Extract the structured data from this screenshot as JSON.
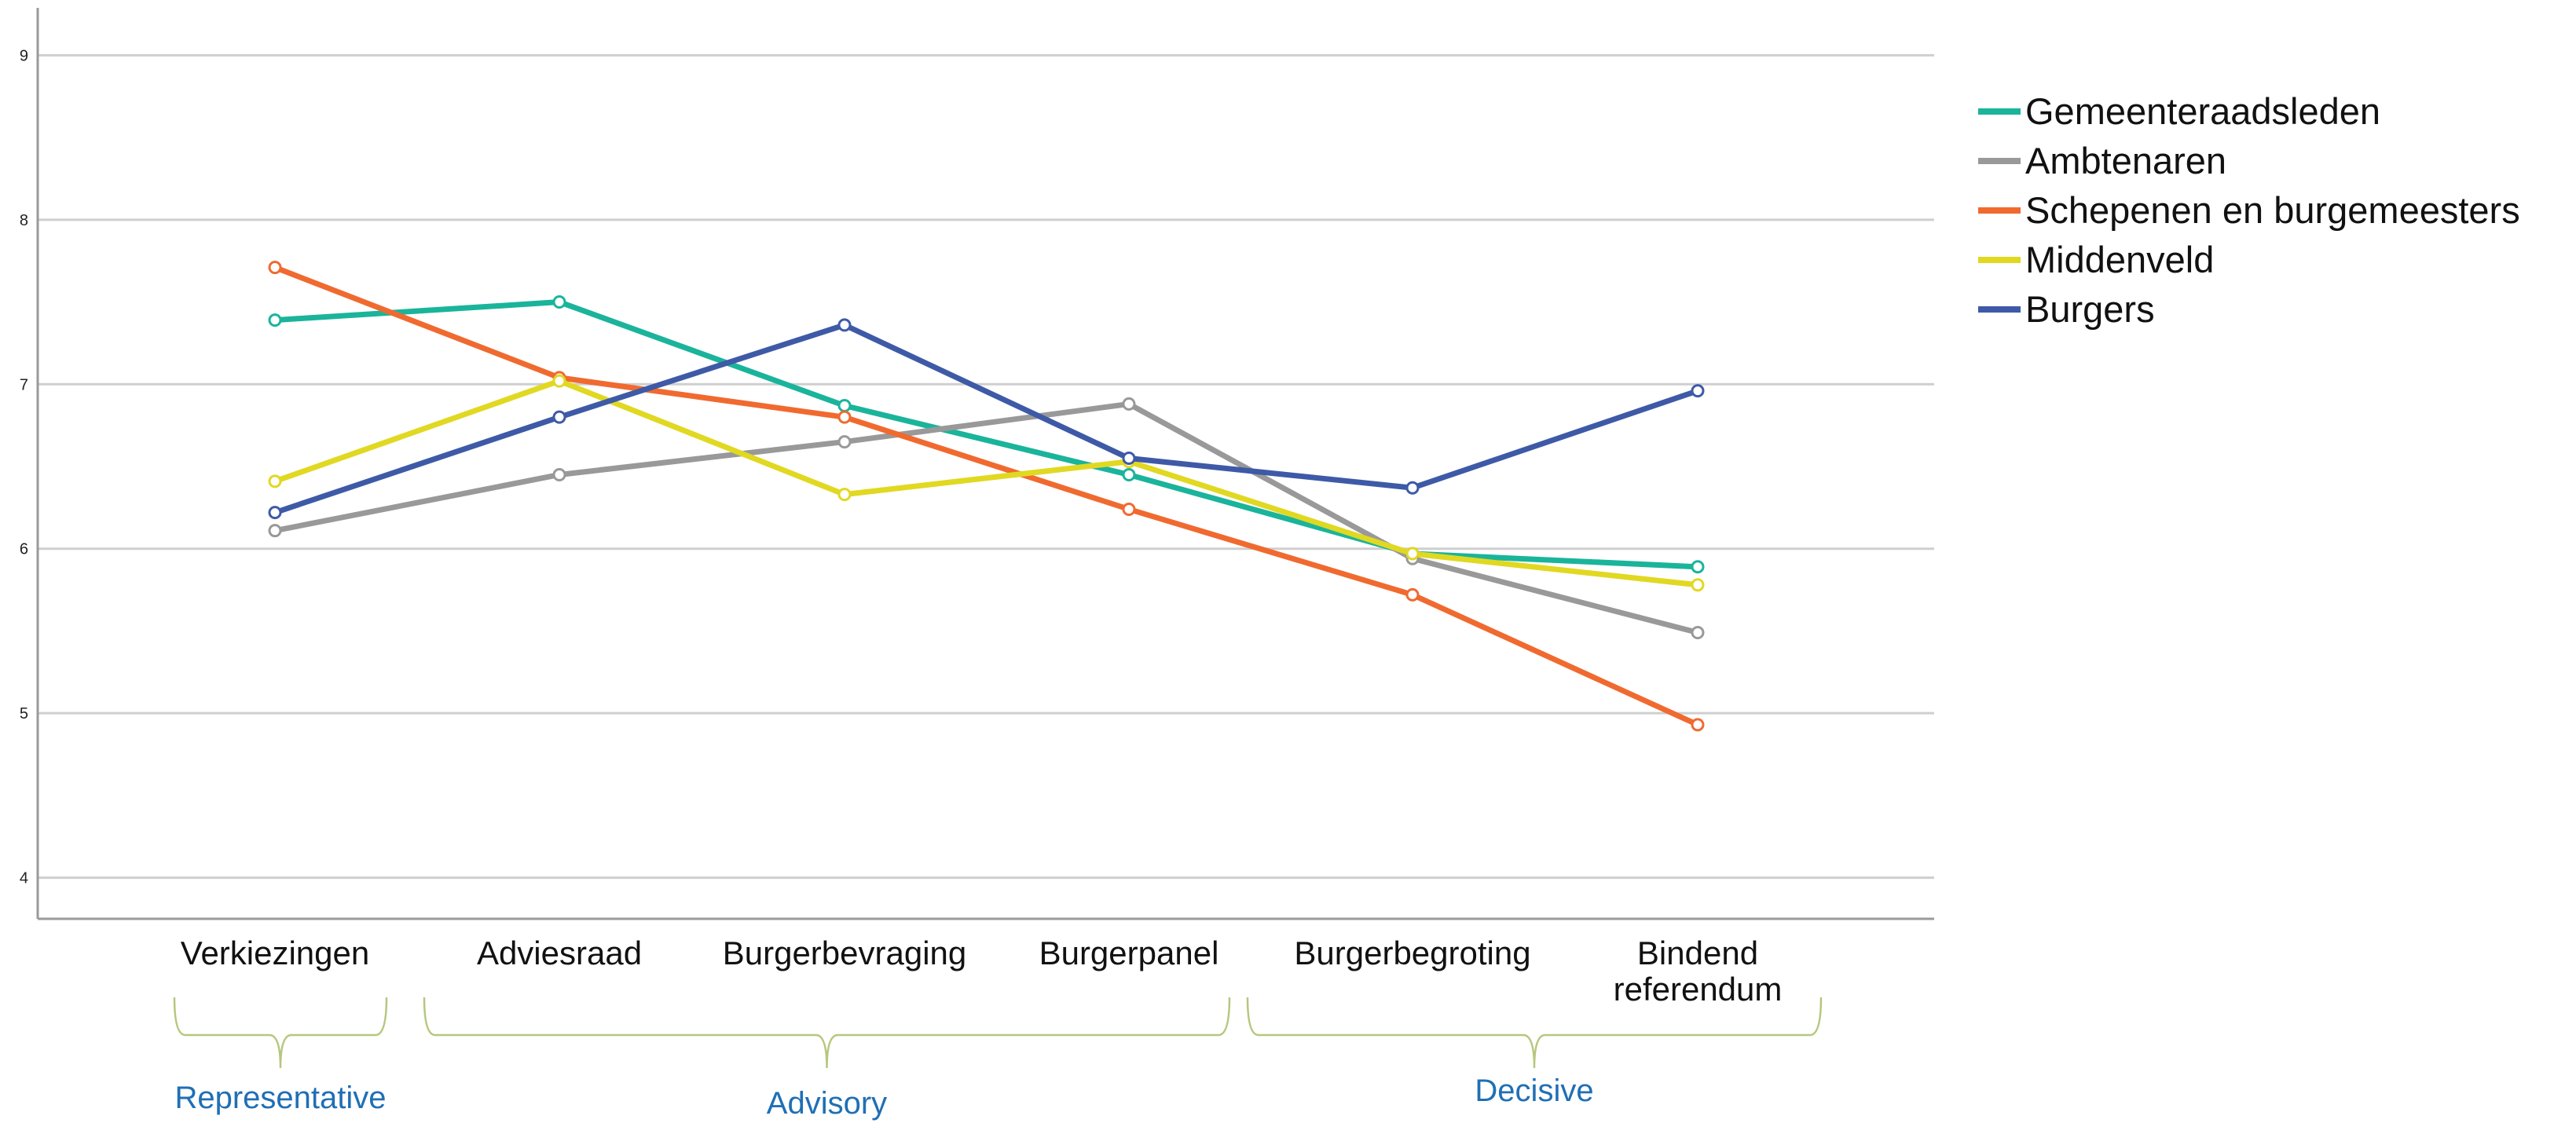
{
  "chart_data": {
    "type": "line",
    "title": "",
    "xlabel": "",
    "ylabel": "",
    "categories": [
      [
        "Verkiezingen"
      ],
      [
        "Adviesraad"
      ],
      [
        "Burgerbevraging"
      ],
      [
        "Burgerpanel"
      ],
      [
        "Burgerbegroting"
      ],
      [
        "Bindend",
        "referendum"
      ]
    ],
    "ylim": [
      3.75,
      9.25
    ],
    "yticks": [
      "4",
      "5",
      "6",
      "7",
      "8",
      "9"
    ],
    "grid": true,
    "legend_position": "right",
    "series": [
      {
        "name": "Gemeenteraadsleden",
        "color": "#1AB49B",
        "values": [
          7.39,
          7.5,
          6.87,
          6.45,
          5.97,
          5.89
        ]
      },
      {
        "name": "Ambtenaren",
        "color": "#999999",
        "values": [
          6.11,
          6.45,
          6.65,
          6.88,
          5.94,
          5.49
        ]
      },
      {
        "name": "Schepenen en burgemeesters",
        "color": "#F06A30",
        "values": [
          7.71,
          7.04,
          6.8,
          6.24,
          5.72,
          4.93
        ]
      },
      {
        "name": "Middenveld",
        "color": "#E1D822",
        "values": [
          6.41,
          7.02,
          6.33,
          6.53,
          5.97,
          5.78
        ]
      },
      {
        "name": "Burgers",
        "color": "#3E5AA7",
        "values": [
          6.22,
          6.8,
          7.36,
          6.55,
          6.37,
          6.96
        ]
      }
    ],
    "groups": [
      {
        "label": "Representative",
        "from": 0,
        "to": 0
      },
      {
        "label": "Advisory",
        "from": 1,
        "to": 3
      },
      {
        "label": "Decisive",
        "from": 4,
        "to": 5
      }
    ],
    "group_label_color": "#1F6FB5",
    "bracket_color": "#B5C77E"
  }
}
